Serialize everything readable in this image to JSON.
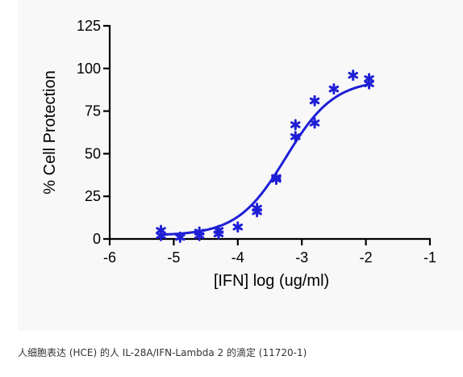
{
  "caption": "人细胞表达 (HCE) 的人 IL-28A/IFN-Lambda 2 的滴定 (11720-1)",
  "chart_data": {
    "type": "scatter",
    "xlabel": "[IFN] log (ug/ml)",
    "ylabel": "% Cell Protection",
    "xlim": [
      -6,
      -1
    ],
    "ylim": [
      0,
      125
    ],
    "x_ticks": [
      -6,
      -5,
      -4,
      -3,
      -2,
      -1
    ],
    "y_ticks": [
      0,
      25,
      50,
      75,
      100,
      125
    ],
    "x_tick_labels": [
      "-6",
      "-5",
      "-4",
      "-3",
      "-2",
      "-1"
    ],
    "y_tick_labels": [
      "0",
      "25",
      "50",
      "75",
      "100",
      "125"
    ],
    "color": "#1f1fd6",
    "series": [
      {
        "points": [
          {
            "x": -5.2,
            "y": 5
          },
          {
            "x": -5.2,
            "y": 2
          },
          {
            "x": -4.9,
            "y": 1
          },
          {
            "x": -4.6,
            "y": 2
          },
          {
            "x": -4.6,
            "y": 4
          },
          {
            "x": -4.3,
            "y": 3
          },
          {
            "x": -4.3,
            "y": 5
          },
          {
            "x": -4.0,
            "y": 7
          },
          {
            "x": -3.7,
            "y": 18
          },
          {
            "x": -3.7,
            "y": 16
          },
          {
            "x": -3.4,
            "y": 35
          },
          {
            "x": -3.4,
            "y": 36
          },
          {
            "x": -3.1,
            "y": 60
          },
          {
            "x": -3.1,
            "y": 67
          },
          {
            "x": -2.8,
            "y": 68
          },
          {
            "x": -2.8,
            "y": 81
          },
          {
            "x": -2.5,
            "y": 88
          },
          {
            "x": -2.2,
            "y": 96
          },
          {
            "x": -1.95,
            "y": 94
          },
          {
            "x": -1.95,
            "y": 91
          }
        ],
        "fit": {
          "bottom": 2,
          "top": 93.5,
          "logEC50": -3.25,
          "hill": 1.15,
          "x_start": -5.2,
          "x_end": -1.95
        }
      }
    ]
  }
}
